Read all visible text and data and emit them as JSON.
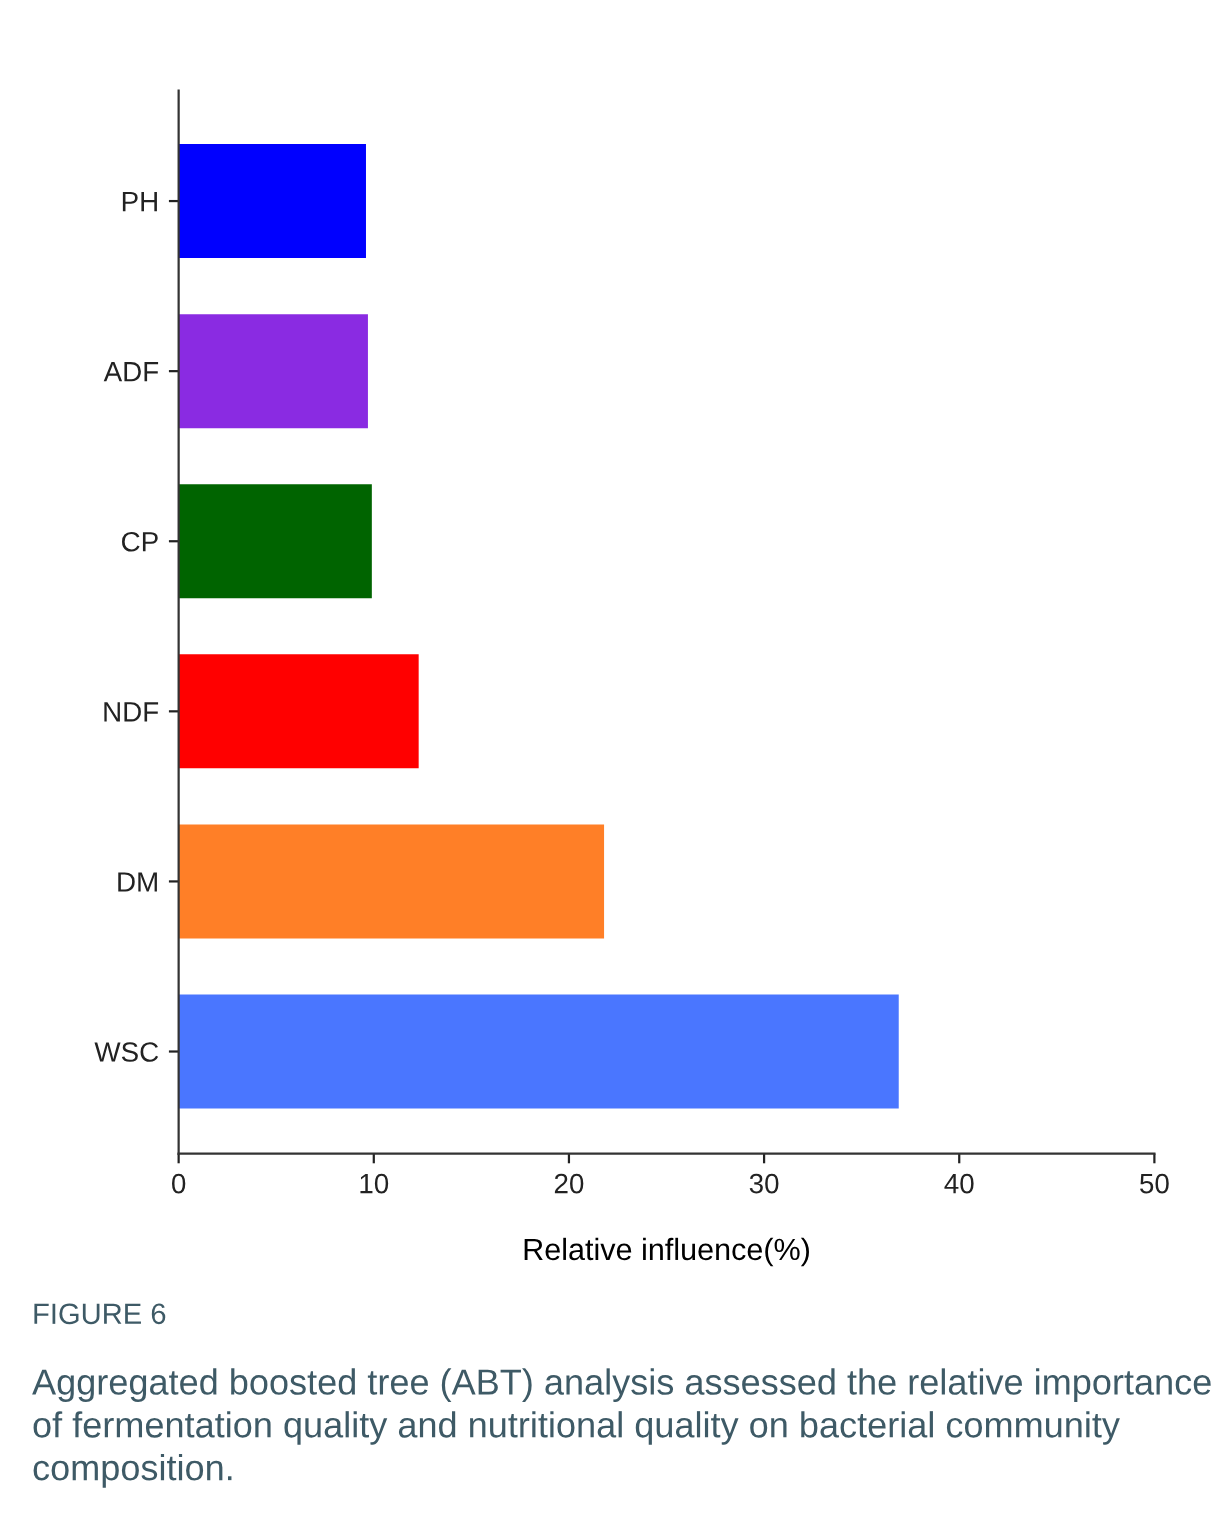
{
  "chart_data": {
    "type": "bar",
    "orientation": "horizontal",
    "categories": [
      "PH",
      "ADF",
      "CP",
      "NDF",
      "DM",
      "WSC"
    ],
    "values": [
      9.6,
      9.7,
      9.9,
      12.3,
      21.8,
      36.9
    ],
    "colors": [
      "#0000ff",
      "#8a2be2",
      "#006400",
      "#ff0000",
      "#ff7f27",
      "#4a76ff"
    ],
    "xlabel": "Relative influence(%)",
    "xlim": [
      0,
      50
    ],
    "xticks": [
      0,
      10,
      20,
      30,
      40,
      50
    ],
    "grid": false,
    "legend": false,
    "annotations": [
      "FIGURE 6",
      "Aggregated boosted tree (ABT) analysis assessed the relative importance of fermentation quality and nutritional quality on bacterial community composition."
    ]
  }
}
